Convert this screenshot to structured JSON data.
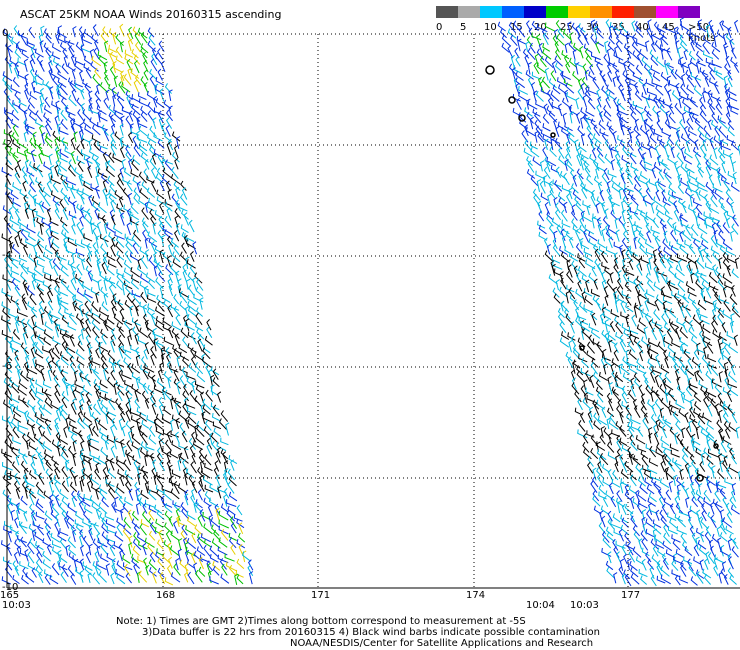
{
  "title": "ASCAT 25KM NOAA Winds 20160315 ascending",
  "legend": {
    "ticks": [
      "0",
      "5",
      "10",
      "15",
      "20",
      "25",
      "30",
      "35",
      "40",
      "45",
      ">50 knots"
    ],
    "colors": [
      "#555555",
      "#aaaaaa",
      "#00c8ff",
      "#0060ff",
      "#0000c8",
      "#00cc00",
      "#ffd000",
      "#ff9000",
      "#ff2000",
      "#a05030",
      "#ff00ff",
      "#8000c0"
    ]
  },
  "y_axis": {
    "labels": [
      "0",
      "-2",
      "-4",
      "-6",
      "-8",
      "-10"
    ]
  },
  "x_axis": {
    "labels": [
      "165",
      "168",
      "171",
      "174",
      "177"
    ]
  },
  "times": {
    "left": "10:03",
    "mid_a": "10:04",
    "mid_b": "10:03"
  },
  "colors": {
    "wind_black": "#000000",
    "wind_cyan": "#00b8e0",
    "wind_blue": "#0030e0",
    "wind_green": "#00c000",
    "wind_yellow": "#e8d000",
    "grid": "#000000",
    "time_purple": "#7a0080"
  },
  "notes": {
    "line1": "Note: 1) Times are GMT 2)Times along bottom correspond to measurement at -5S",
    "line2": "3)Data buffer is 22 hrs from 20160315 4) Black wind barbs indicate possible contamination",
    "line3": "NOAA/NESDIS/Center for Satellite Applications and Research"
  }
}
